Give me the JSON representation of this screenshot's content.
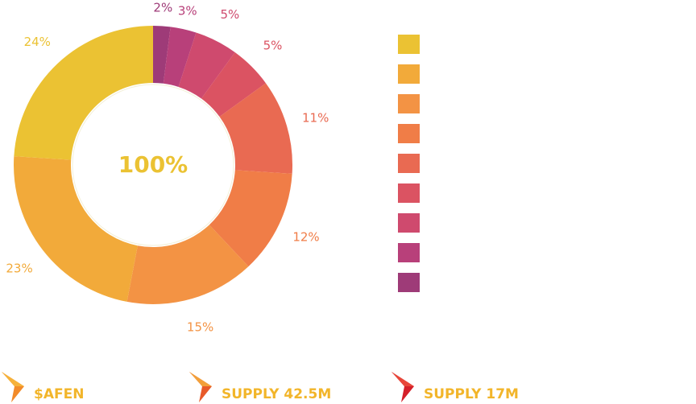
{
  "chart_data": {
    "type": "pie",
    "center_label": "100%",
    "slices": [
      {
        "value": 2,
        "label": "2%",
        "color": "#9E3B78"
      },
      {
        "value": 3,
        "label": "3%",
        "color": "#B8407A"
      },
      {
        "value": 5,
        "label": "5%",
        "color": "#CF4A6E"
      },
      {
        "value": 5,
        "label": "5%",
        "color": "#DB5362"
      },
      {
        "value": 11,
        "label": "11%",
        "color": "#E96A52"
      },
      {
        "value": 12,
        "label": "12%",
        "color": "#F07D47"
      },
      {
        "value": 15,
        "label": "15%",
        "color": "#F39344"
      },
      {
        "value": 23,
        "label": "23%",
        "color": "#F2AA3A"
      },
      {
        "value": 24,
        "label": "24%",
        "color": "#EBC233"
      }
    ],
    "legend_colors": [
      "#EBC233",
      "#F2AA3A",
      "#F39344",
      "#F07D47",
      "#E96A52",
      "#DB5362",
      "#CF4A6E",
      "#B8407A",
      "#9E3B78"
    ],
    "legend_labels": []
  },
  "footer": [
    {
      "label": "$AFEN",
      "icon": "afen-logo-icon",
      "color": "#F2B52A"
    },
    {
      "label": "SUPPLY 42.5M",
      "icon": "supply-logo-icon",
      "color": "#F2B52A"
    },
    {
      "label": "SUPPLY 17M",
      "icon": "supply-logo-icon",
      "color": "#F2B52A"
    }
  ]
}
